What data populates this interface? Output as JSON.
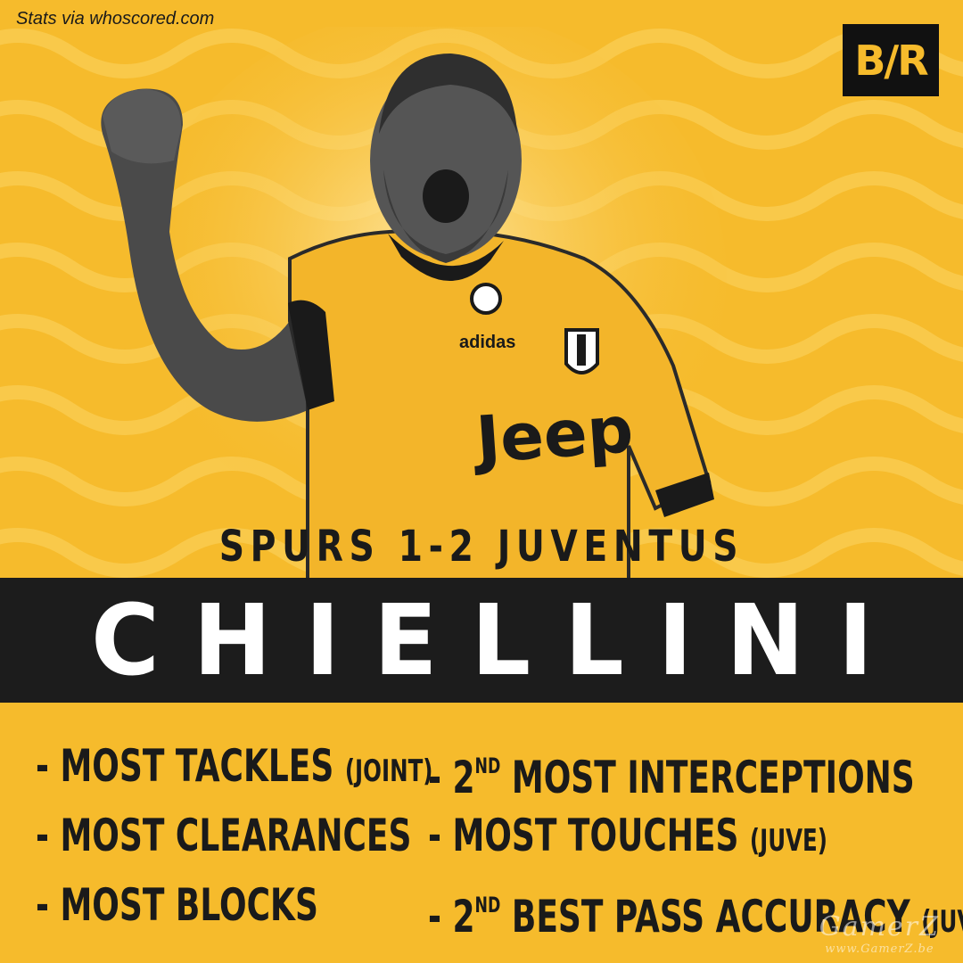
{
  "source": "Stats via whoscored.com",
  "logo": "B/R",
  "match": "SPURS 1-2 JUVENTUS",
  "player_name": "CHIELLINI",
  "kit_text": {
    "sponsor": "Jeep",
    "brand": "adidas"
  },
  "stats": [
    {
      "prefix": "- ",
      "text": "MOST TACKLES",
      "qualifier": "(JOINT)"
    },
    {
      "prefix": "- 2",
      "sup": "ND",
      "text": "MOST INTERCEPTIONS",
      "qualifier": ""
    },
    {
      "prefix": "- ",
      "text": "MOST CLEARANCES",
      "qualifier": ""
    },
    {
      "prefix": "- ",
      "text": "MOST TOUCHES",
      "qualifier": "(JUVE)"
    },
    {
      "prefix": "- ",
      "text": "MOST BLOCKS",
      "qualifier": ""
    },
    {
      "prefix": "- 2",
      "sup": "ND",
      "text": "BEST PASS ACCURACY",
      "qualifier": "(JUVE)"
    }
  ],
  "watermark": {
    "line1": "GamerZ",
    "line2": "www.GamerZ.be"
  },
  "colors": {
    "background": "#f6bb2c",
    "bar": "#1c1c1c",
    "text": "#1a1a1a"
  }
}
